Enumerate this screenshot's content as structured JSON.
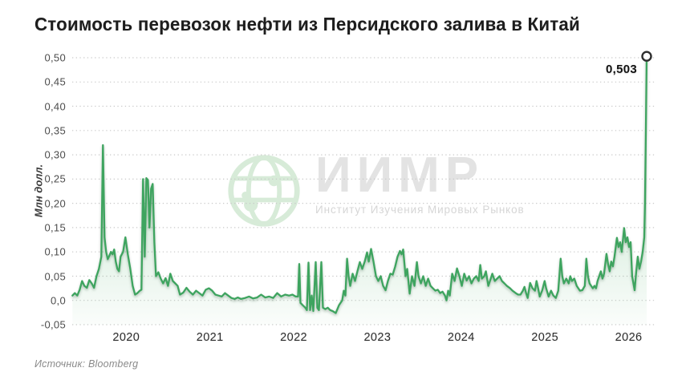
{
  "header": {
    "title": "Стоимость перевозок нефти из Персидского залива в Китай"
  },
  "footer": {
    "source": "Источник: Bloomberg"
  },
  "watermark": {
    "icon": "globe-icon",
    "title": "ИИМР",
    "subtitle": "Институт Изучения Мировых Рынков"
  },
  "colors": {
    "line": "#3ea45f",
    "fill": "#65b87c",
    "grid": "#c9c9c9",
    "marker_fill": "#ffffff",
    "marker_stroke": "#2e2e2e",
    "annotation": "#131313"
  },
  "chart_data": {
    "type": "area",
    "title": "Стоимость перевозок нефти из Персидского залива в Китай",
    "xlabel": "",
    "ylabel": "Млн долл.",
    "grid": "horizontal-dotted",
    "legend": "none",
    "xlim": [
      2019.355,
      2026.33
    ],
    "ylim": [
      -0.05,
      0.5
    ],
    "x_ticks": [
      2020,
      2021,
      2022,
      2023,
      2024,
      2025,
      2026
    ],
    "x_tick_labels": [
      "2020",
      "2021",
      "2022",
      "2023",
      "2024",
      "2025",
      "2026"
    ],
    "y_tick_values": [
      0.5,
      0.45,
      0.4,
      0.35,
      0.3,
      0.25,
      0.2,
      0.15,
      0.1,
      0.05,
      0.0,
      -0.05
    ],
    "y_tick_labels": [
      "0,50",
      "0,45",
      "0,40",
      "0,35",
      "0,30",
      "0,25",
      "0,20",
      "0,15",
      "0,10",
      "0,05",
      "0,0",
      "-0,05"
    ],
    "annotation": {
      "label": "0,503",
      "x": 2026.215,
      "y": 0.503
    },
    "series": [
      {
        "name": "Стоимость перевозок нефти",
        "points": [
          [
            2019.358,
            0.01
          ],
          [
            2019.386,
            0.015
          ],
          [
            2019.415,
            0.01
          ],
          [
            2019.444,
            0.022
          ],
          [
            2019.473,
            0.04
          ],
          [
            2019.501,
            0.03
          ],
          [
            2019.53,
            0.026
          ],
          [
            2019.559,
            0.042
          ],
          [
            2019.588,
            0.035
          ],
          [
            2019.616,
            0.026
          ],
          [
            2019.645,
            0.05
          ],
          [
            2019.674,
            0.065
          ],
          [
            2019.703,
            0.09
          ],
          [
            2019.722,
            0.32
          ],
          [
            2019.741,
            0.13
          ],
          [
            2019.76,
            0.1
          ],
          [
            2019.779,
            0.085
          ],
          [
            2019.799,
            0.092
          ],
          [
            2019.818,
            0.1
          ],
          [
            2019.837,
            0.095
          ],
          [
            2019.856,
            0.105
          ],
          [
            2019.875,
            0.08
          ],
          [
            2019.894,
            0.065
          ],
          [
            2019.914,
            0.06
          ],
          [
            2019.933,
            0.09
          ],
          [
            2019.962,
            0.1
          ],
          [
            2019.99,
            0.13
          ],
          [
            2020.019,
            0.095
          ],
          [
            2020.048,
            0.066
          ],
          [
            2020.077,
            0.03
          ],
          [
            2020.105,
            0.012
          ],
          [
            2020.134,
            0.015
          ],
          [
            2020.163,
            0.02
          ],
          [
            2020.182,
            0.022
          ],
          [
            2020.201,
            0.25
          ],
          [
            2020.221,
            0.09
          ],
          [
            2020.24,
            0.252
          ],
          [
            2020.259,
            0.248
          ],
          [
            2020.278,
            0.15
          ],
          [
            2020.297,
            0.23
          ],
          [
            2020.316,
            0.24
          ],
          [
            2020.336,
            0.12
          ],
          [
            2020.355,
            0.05
          ],
          [
            2020.384,
            0.058
          ],
          [
            2020.412,
            0.045
          ],
          [
            2020.441,
            0.035
          ],
          [
            2020.47,
            0.046
          ],
          [
            2020.499,
            0.03
          ],
          [
            2020.527,
            0.055
          ],
          [
            2020.556,
            0.04
          ],
          [
            2020.585,
            0.035
          ],
          [
            2020.614,
            0.03
          ],
          [
            2020.642,
            0.012
          ],
          [
            2020.681,
            0.016
          ],
          [
            2020.719,
            0.026
          ],
          [
            2020.757,
            0.018
          ],
          [
            2020.796,
            0.012
          ],
          [
            2020.834,
            0.02
          ],
          [
            2020.872,
            0.015
          ],
          [
            2020.911,
            0.01
          ],
          [
            2020.949,
            0.022
          ],
          [
            2020.988,
            0.025
          ],
          [
            2021.026,
            0.02
          ],
          [
            2021.064,
            0.012
          ],
          [
            2021.103,
            0.01
          ],
          [
            2021.141,
            0.008
          ],
          [
            2021.179,
            0.015
          ],
          [
            2021.218,
            0.01
          ],
          [
            2021.256,
            0.005
          ],
          [
            2021.294,
            0.003
          ],
          [
            2021.333,
            0.006
          ],
          [
            2021.371,
            0.003
          ],
          [
            2021.419,
            0.005
          ],
          [
            2021.467,
            0.008
          ],
          [
            2021.515,
            0.004
          ],
          [
            2021.563,
            0.006
          ],
          [
            2021.611,
            0.012
          ],
          [
            2021.659,
            0.006
          ],
          [
            2021.707,
            0.008
          ],
          [
            2021.755,
            0.005
          ],
          [
            2021.803,
            0.015
          ],
          [
            2021.85,
            0.008
          ],
          [
            2021.898,
            0.012
          ],
          [
            2021.946,
            0.01
          ],
          [
            2021.985,
            0.012
          ],
          [
            2022.023,
            0.008
          ],
          [
            2022.052,
            0.008
          ],
          [
            2022.066,
            0.075
          ],
          [
            2022.081,
            -0.005
          ],
          [
            2022.109,
            -0.01
          ],
          [
            2022.138,
            -0.015
          ],
          [
            2022.157,
            -0.02
          ],
          [
            2022.177,
            0.078
          ],
          [
            2022.196,
            -0.02
          ],
          [
            2022.215,
            0.01
          ],
          [
            2022.234,
            -0.022
          ],
          [
            2022.263,
            0.079
          ],
          [
            2022.282,
            -0.015
          ],
          [
            2022.301,
            -0.02
          ],
          [
            2022.33,
            0.079
          ],
          [
            2022.349,
            -0.015
          ],
          [
            2022.378,
            -0.018
          ],
          [
            2022.407,
            -0.015
          ],
          [
            2022.435,
            -0.02
          ],
          [
            2022.464,
            -0.022
          ],
          [
            2022.502,
            -0.026
          ],
          [
            2022.541,
            -0.01
          ],
          [
            2022.579,
            0.0
          ],
          [
            2022.598,
            0.02
          ],
          [
            2022.617,
            0.01
          ],
          [
            2022.637,
            0.086
          ],
          [
            2022.656,
            0.05
          ],
          [
            2022.675,
            0.03
          ],
          [
            2022.704,
            0.055
          ],
          [
            2022.732,
            0.04
          ],
          [
            2022.761,
            0.06
          ],
          [
            2022.79,
            0.079
          ],
          [
            2022.819,
            0.065
          ],
          [
            2022.848,
            0.08
          ],
          [
            2022.876,
            0.099
          ],
          [
            2022.896,
            0.08
          ],
          [
            2022.924,
            0.106
          ],
          [
            2022.953,
            0.08
          ],
          [
            2022.982,
            0.05
          ],
          [
            2023.01,
            0.04
          ],
          [
            2023.039,
            0.05
          ],
          [
            2023.068,
            0.03
          ],
          [
            2023.097,
            0.021
          ],
          [
            2023.125,
            0.04
          ],
          [
            2023.154,
            0.055
          ],
          [
            2023.183,
            0.053
          ],
          [
            2023.212,
            0.07
          ],
          [
            2023.24,
            0.09
          ],
          [
            2023.269,
            0.102
          ],
          [
            2023.288,
            0.095
          ],
          [
            2023.307,
            0.105
          ],
          [
            2023.336,
            0.05
          ],
          [
            2023.355,
            0.065
          ],
          [
            2023.385,
            0.014
          ],
          [
            2023.413,
            0.05
          ],
          [
            2023.442,
            0.03
          ],
          [
            2023.471,
            0.079
          ],
          [
            2023.49,
            0.05
          ],
          [
            2023.519,
            0.035
          ],
          [
            2023.547,
            0.05
          ],
          [
            2023.576,
            0.03
          ],
          [
            2023.605,
            0.045
          ],
          [
            2023.634,
            0.03
          ],
          [
            2023.662,
            0.025
          ],
          [
            2023.691,
            0.02
          ],
          [
            2023.72,
            0.022
          ],
          [
            2023.749,
            0.015
          ],
          [
            2023.777,
            0.018
          ],
          [
            2023.806,
            0.01
          ],
          [
            2023.825,
            0.0
          ],
          [
            2023.845,
            0.02
          ],
          [
            2023.864,
            0.01
          ],
          [
            2023.893,
            0.055
          ],
          [
            2023.921,
            0.04
          ],
          [
            2023.95,
            0.066
          ],
          [
            2023.979,
            0.05
          ],
          [
            2024.008,
            0.03
          ],
          [
            2024.036,
            0.055
          ],
          [
            2024.065,
            0.041
          ],
          [
            2024.094,
            0.05
          ],
          [
            2024.123,
            0.035
          ],
          [
            2024.151,
            0.045
          ],
          [
            2024.18,
            0.05
          ],
          [
            2024.209,
            0.04
          ],
          [
            2024.228,
            0.073
          ],
          [
            2024.247,
            0.045
          ],
          [
            2024.276,
            0.05
          ],
          [
            2024.295,
            0.06
          ],
          [
            2024.324,
            0.03
          ],
          [
            2024.353,
            0.045
          ],
          [
            2024.372,
            0.055
          ],
          [
            2024.401,
            0.04
          ],
          [
            2024.43,
            0.045
          ],
          [
            2024.459,
            0.05
          ],
          [
            2024.487,
            0.04
          ],
          [
            2024.516,
            0.035
          ],
          [
            2024.545,
            0.03
          ],
          [
            2024.583,
            0.025
          ],
          [
            2024.612,
            0.02
          ],
          [
            2024.65,
            0.015
          ],
          [
            2024.679,
            0.012
          ],
          [
            2024.708,
            0.012
          ],
          [
            2024.737,
            0.02
          ],
          [
            2024.756,
            0.028
          ],
          [
            2024.775,
            0.015
          ],
          [
            2024.794,
            0.005
          ],
          [
            2024.823,
            0.036
          ],
          [
            2024.852,
            0.025
          ],
          [
            2024.881,
            0.02
          ],
          [
            2024.9,
            0.04
          ],
          [
            2024.919,
            0.025
          ],
          [
            2024.938,
            0.008
          ],
          [
            2024.967,
            0.02
          ],
          [
            2024.996,
            0.04
          ],
          [
            2025.015,
            0.025
          ],
          [
            2025.044,
            0.008
          ],
          [
            2025.073,
            0.02
          ],
          [
            2025.101,
            0.01
          ],
          [
            2025.13,
            0.005
          ],
          [
            2025.159,
            0.02
          ],
          [
            2025.188,
            0.086
          ],
          [
            2025.207,
            0.05
          ],
          [
            2025.226,
            0.035
          ],
          [
            2025.255,
            0.045
          ],
          [
            2025.284,
            0.035
          ],
          [
            2025.303,
            0.05
          ],
          [
            2025.322,
            0.04
          ],
          [
            2025.351,
            0.045
          ],
          [
            2025.38,
            0.03
          ],
          [
            2025.399,
            0.025
          ],
          [
            2025.418,
            0.02
          ],
          [
            2025.447,
            0.021
          ],
          [
            2025.476,
            0.03
          ],
          [
            2025.495,
            0.086
          ],
          [
            2025.514,
            0.05
          ],
          [
            2025.533,
            0.035
          ],
          [
            2025.552,
            0.03
          ],
          [
            2025.572,
            0.025
          ],
          [
            2025.591,
            0.03
          ],
          [
            2025.61,
            0.025
          ],
          [
            2025.629,
            0.04
          ],
          [
            2025.648,
            0.05
          ],
          [
            2025.668,
            0.06
          ],
          [
            2025.687,
            0.045
          ],
          [
            2025.706,
            0.055
          ],
          [
            2025.735,
            0.096
          ],
          [
            2025.754,
            0.075
          ],
          [
            2025.773,
            0.06
          ],
          [
            2025.792,
            0.08
          ],
          [
            2025.812,
            0.07
          ],
          [
            2025.831,
            0.09
          ],
          [
            2025.86,
            0.129
          ],
          [
            2025.879,
            0.11
          ],
          [
            2025.898,
            0.12
          ],
          [
            2025.917,
            0.1
          ],
          [
            2025.946,
            0.149
          ],
          [
            2025.965,
            0.12
          ],
          [
            2025.985,
            0.13
          ],
          [
            2026.004,
            0.11
          ],
          [
            2026.023,
            0.12
          ],
          [
            2026.042,
            0.05
          ],
          [
            2026.071,
            0.021
          ],
          [
            2026.09,
            0.06
          ],
          [
            2026.109,
            0.09
          ],
          [
            2026.128,
            0.065
          ],
          [
            2026.148,
            0.08
          ],
          [
            2026.167,
            0.1
          ],
          [
            2026.186,
            0.13
          ],
          [
            2026.195,
            0.2
          ],
          [
            2026.205,
            0.35
          ],
          [
            2026.215,
            0.503
          ]
        ]
      }
    ]
  }
}
